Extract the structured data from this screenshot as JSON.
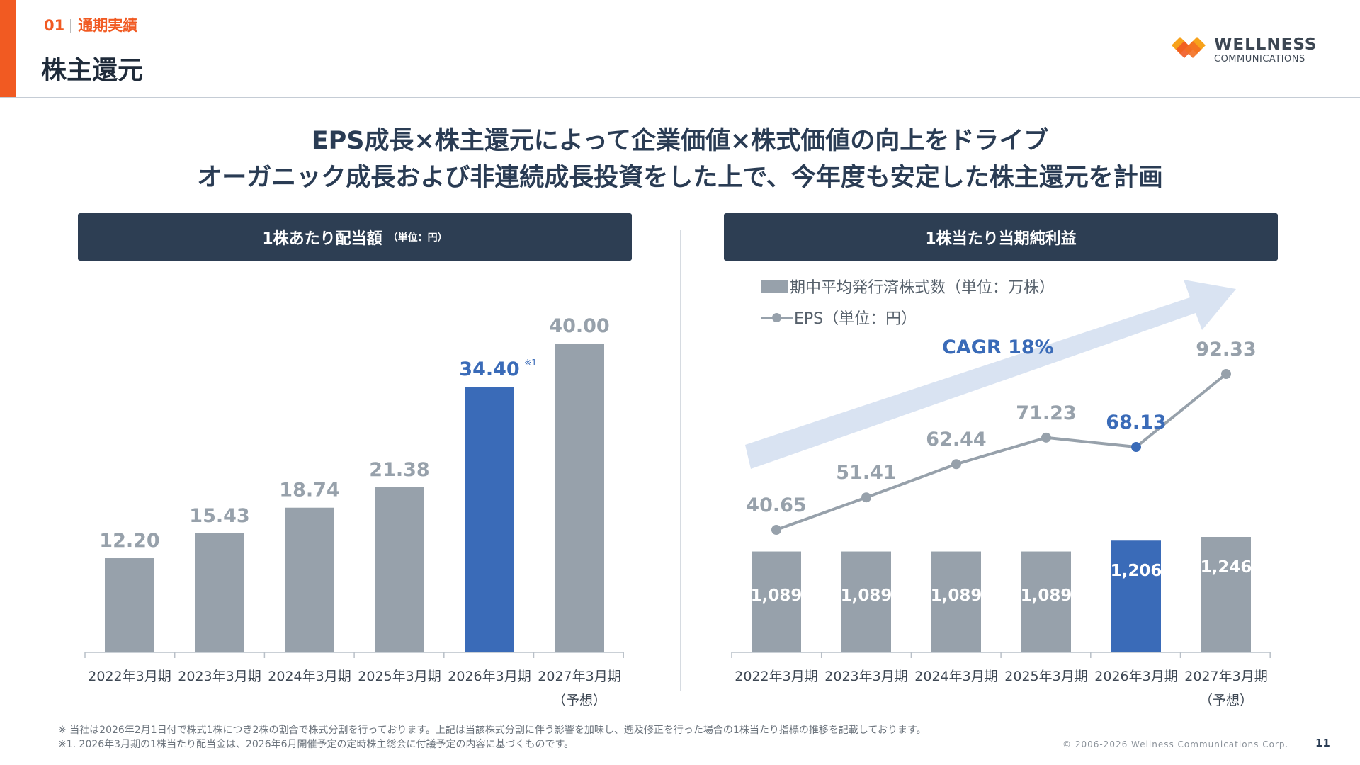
{
  "header": {
    "section_number": "01",
    "section_name": "通期実績",
    "title": "株主還元",
    "accent_color": "#f15a22"
  },
  "logo": {
    "name": "WELLNESS",
    "sub": "COMMUNICATIONS"
  },
  "headline": {
    "line1": "EPS成長×株主還元によって企業価値×株式価値の向上をドライブ",
    "line2": "オーガニック成長および非連続成長投資をした上で、今年度も安定した株主還元を計画"
  },
  "left_panel": {
    "title": "1株あたり配当額",
    "unit": "（単位：円）"
  },
  "right_panel": {
    "title": "1株当たり当期純利益",
    "legend_bar": "期中平均発行済株式数（単位：万株）",
    "legend_line": "EPS（単位：円）",
    "cagr": "CAGR 18%"
  },
  "chart_data": [
    {
      "type": "bar",
      "title": "1株あたり配当額",
      "categories": [
        "2022年3月期",
        "2023年3月期",
        "2024年3月期",
        "2025年3月期",
        "2026年3月期",
        "2027年3月期"
      ],
      "category_notes": [
        "",
        "",
        "",
        "",
        "",
        "（予想）"
      ],
      "values": [
        12.2,
        15.43,
        18.74,
        21.38,
        34.4,
        40.0
      ],
      "labels": [
        "12.20",
        "15.43",
        "18.74",
        "21.38",
        "34.40",
        "40.00"
      ],
      "highlight_index": 4,
      "label_note": "※1",
      "ylim": [
        0,
        40
      ],
      "grid": false,
      "colors": {
        "bar": "#97a1ab",
        "highlight": "#3a6bb8",
        "label": "#97a1ab",
        "highlight_label": "#3a6bb8"
      }
    },
    {
      "type": "bar+line",
      "title": "1株当たり当期純利益",
      "categories": [
        "2022年3月期",
        "2023年3月期",
        "2024年3月期",
        "2025年3月期",
        "2026年3月期",
        "2027年3月期"
      ],
      "category_notes": [
        "",
        "",
        "",
        "",
        "",
        "（予想）"
      ],
      "series": [
        {
          "name": "期中平均発行済株式数（単位：万株）",
          "type": "bar",
          "values": [
            1089,
            1089,
            1089,
            1089,
            1206,
            1246
          ],
          "labels": [
            "1,089",
            "1,089",
            "1,089",
            "1,089",
            "1,206",
            "1,246"
          ]
        },
        {
          "name": "EPS（単位：円）",
          "type": "line",
          "values": [
            40.65,
            51.41,
            62.44,
            71.23,
            68.13,
            92.33
          ],
          "labels": [
            "40.65",
            "51.41",
            "62.44",
            "71.23",
            "68.13",
            "92.33"
          ]
        }
      ],
      "highlight_index": 4,
      "annotation": "CAGR 18%",
      "legend": "top-left",
      "grid": false,
      "colors": {
        "bar": "#97a1ab",
        "highlight": "#3a6bb8",
        "line": "#97a1ab",
        "arrow": "#d5e0f1"
      }
    }
  ],
  "footnotes": {
    "line1": "※ 当社は2026年2月1日付で株式1株につき2株の割合で株式分割を行っております。上記は当該株式分割に伴う影響を加味し、遡及修正を行った場合の1株当たり指標の推移を記載しております。",
    "line2": "※1. 2026年3月期の1株当たり配当金は、2026年6月開催予定の定時株主総会に付議予定の内容に基づくものです。"
  },
  "copyright": "© 2006-2026 Wellness Communications Corp.",
  "page_number": "11"
}
